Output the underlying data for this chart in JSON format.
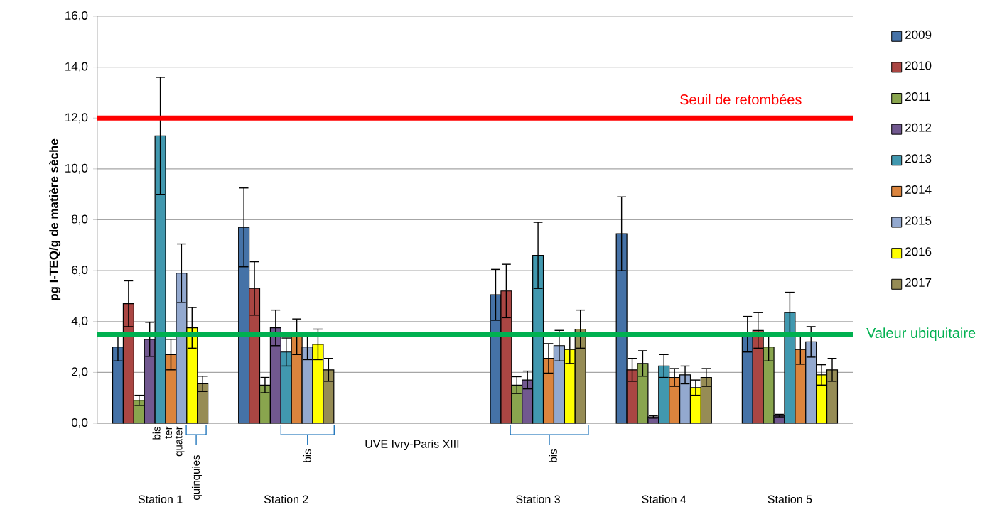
{
  "chart_data": {
    "type": "bar",
    "ylabel": "pg I-TEQ/g de matière sèche",
    "categories": [
      "Station 1",
      "Station 2",
      "UVE Ivry-Paris XIII",
      "Station 3",
      "Station 4",
      "Station 5"
    ],
    "ylim": [
      0,
      16
    ],
    "yticks": [
      {
        "value": 0,
        "label": "0,0"
      },
      {
        "value": 2,
        "label": "2,0"
      },
      {
        "value": 4,
        "label": "4,0"
      },
      {
        "value": 6,
        "label": "6,0"
      },
      {
        "value": 8,
        "label": "8,0"
      },
      {
        "value": 10,
        "label": "10,0"
      },
      {
        "value": 12,
        "label": "12,0"
      },
      {
        "value": 14,
        "label": "14,0"
      },
      {
        "value": 16,
        "label": "16,0"
      }
    ],
    "grid": "y",
    "legend": "right",
    "series": [
      {
        "name": "2009",
        "color": "#4572a7",
        "values": [
          3.0,
          7.7,
          null,
          5.05,
          7.45,
          3.5
        ],
        "errors": [
          0.55,
          1.55,
          null,
          1.0,
          1.45,
          0.7
        ]
      },
      {
        "name": "2010",
        "color": "#aa4643",
        "values": [
          4.7,
          5.3,
          null,
          5.2,
          2.1,
          3.65
        ],
        "errors": [
          0.9,
          1.05,
          null,
          1.05,
          0.45,
          0.7
        ]
      },
      {
        "name": "2011",
        "color": "#89a54e",
        "values": [
          0.9,
          1.5,
          null,
          1.5,
          2.35,
          3.0
        ],
        "errors": [
          0.2,
          0.3,
          null,
          0.33,
          0.5,
          0.55
        ]
      },
      {
        "name": "2012",
        "color": "#71588f",
        "values": [
          3.3,
          3.75,
          null,
          1.7,
          0.25,
          0.3
        ],
        "errors": [
          0.67,
          0.7,
          null,
          0.35,
          0.05,
          0.05
        ]
      },
      {
        "name": "2013",
        "color": "#4198af",
        "values": [
          11.3,
          2.8,
          null,
          6.6,
          2.25,
          4.35
        ],
        "errors": [
          2.3,
          0.55,
          null,
          1.3,
          0.45,
          0.8
        ]
      },
      {
        "name": "2014",
        "color": "#db843d",
        "values": [
          2.7,
          3.4,
          null,
          2.55,
          1.8,
          2.9
        ],
        "errors": [
          0.6,
          0.7,
          null,
          0.58,
          0.35,
          0.58
        ]
      },
      {
        "name": "2015",
        "color": "#93a9cf",
        "values": [
          5.9,
          3.0,
          null,
          3.05,
          1.9,
          3.2
        ],
        "errors": [
          1.15,
          0.5,
          null,
          0.6,
          0.35,
          0.6
        ]
      },
      {
        "name": "2016",
        "color": "#ffff00",
        "values": [
          3.75,
          3.1,
          null,
          2.9,
          1.4,
          1.9
        ],
        "errors": [
          0.8,
          0.6,
          null,
          0.55,
          0.3,
          0.4
        ]
      },
      {
        "name": "2017",
        "color": "#968c55",
        "values": [
          1.55,
          2.1,
          null,
          3.7,
          1.8,
          2.1
        ],
        "errors": [
          0.3,
          0.45,
          null,
          0.75,
          0.35,
          0.45
        ]
      }
    ],
    "ref_lines": [
      {
        "axis": "y",
        "value": 12,
        "label": "Seuil de retombées",
        "color": "#ff0000"
      },
      {
        "axis": "y",
        "value": 3.5,
        "label": "Valeur ubiquitaire",
        "color": "#00b050"
      }
    ],
    "annotations": [
      "bis",
      "ter",
      "quater",
      "quinquies",
      "bis",
      "bis"
    ]
  }
}
